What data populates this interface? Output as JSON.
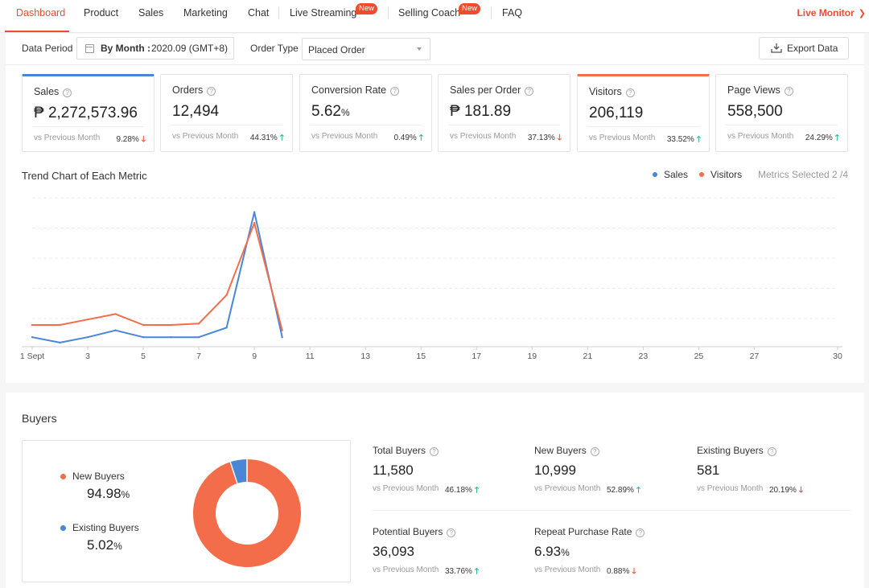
{
  "nav": {
    "tabs": [
      {
        "label": "Dashboard",
        "active": true
      },
      {
        "label": "Product"
      },
      {
        "label": "Sales"
      },
      {
        "label": "Marketing"
      },
      {
        "label": "Chat"
      },
      {
        "label": "Live Streaming",
        "badge": "New"
      },
      {
        "label": "Selling Coach",
        "badge": "New"
      },
      {
        "label": "FAQ"
      }
    ],
    "live_monitor": "Live Monitor",
    "accent": "#ee4d2d"
  },
  "filters": {
    "data_period_label": "Data Period",
    "period_type": "By Month :",
    "period_value": "2020.09 (GMT+8)",
    "order_type_label": "Order Type",
    "order_type_value": "Placed Order",
    "export_label": "Export Data"
  },
  "metrics": [
    {
      "title": "Sales",
      "value": "₱ 2,272,573.96",
      "compare": "vs Previous Month",
      "pct": "9.28%",
      "trend": "down",
      "selected": "blue"
    },
    {
      "title": "Orders",
      "value": "12,494",
      "compare": "vs Previous Month",
      "pct": "44.31%",
      "trend": "up"
    },
    {
      "title": "Conversion Rate",
      "value": "5.62",
      "unit": "%",
      "compare": "vs Previous Month",
      "pct": "0.49%",
      "trend": "up"
    },
    {
      "title": "Sales per Order",
      "value": "₱ 181.89",
      "compare": "vs Previous Month",
      "pct": "37.13%",
      "trend": "down"
    },
    {
      "title": "Visitors",
      "value": "206,119",
      "compare": "vs Previous Month",
      "pct": "33.52%",
      "trend": "up",
      "selected": "orange"
    },
    {
      "title": "Page Views",
      "value": "558,500",
      "compare": "vs Previous Month",
      "pct": "24.29%",
      "trend": "up"
    }
  ],
  "trend": {
    "title": "Trend Chart of Each Metric",
    "metrics_selected": "Metrics Selected 2 /4",
    "legend": [
      {
        "name": "Sales",
        "color": "#4a86d6"
      },
      {
        "name": "Visitors",
        "color": "#f36d4a"
      }
    ]
  },
  "chart_data": {
    "type": "line",
    "x_tick_labels": [
      "1 Sept",
      "3",
      "5",
      "7",
      "9",
      "11",
      "13",
      "15",
      "17",
      "19",
      "21",
      "23",
      "25",
      "27",
      "30"
    ],
    "x_ticks": [
      1,
      3,
      5,
      7,
      9,
      11,
      13,
      15,
      17,
      19,
      21,
      23,
      25,
      27,
      30
    ],
    "xlim": [
      1,
      30
    ],
    "ylim": [
      0,
      100
    ],
    "grid": true,
    "legend_position": "top-right",
    "series": [
      {
        "name": "Sales",
        "color": "#4a86d6",
        "x": [
          1,
          2,
          3,
          4,
          5,
          6,
          7,
          8,
          9,
          10
        ],
        "values": [
          7,
          3,
          7,
          12,
          7,
          7,
          7,
          14,
          99,
          7
        ]
      },
      {
        "name": "Visitors",
        "color": "#f36d4a",
        "x": [
          1,
          2,
          3,
          4,
          5,
          6,
          7,
          8,
          9,
          10
        ],
        "values": [
          16,
          16,
          20,
          24,
          16,
          16,
          17,
          38,
          91,
          12
        ]
      }
    ]
  },
  "buyers": {
    "title": "Buyers",
    "donut": {
      "items": [
        {
          "label": "New Buyers",
          "value": "94.98",
          "unit": "%",
          "share": 94.98,
          "color": "#f36d4a"
        },
        {
          "label": "Existing Buyers",
          "value": "5.02",
          "unit": "%",
          "share": 5.02,
          "color": "#4a86d6"
        }
      ]
    },
    "metrics": [
      {
        "title": "Total Buyers",
        "value": "11,580",
        "compare": "vs Previous Month",
        "pct": "46.18%",
        "trend": "up"
      },
      {
        "title": "New Buyers",
        "value": "10,999",
        "compare": "vs Previous Month",
        "pct": "52.89%",
        "trend": "up"
      },
      {
        "title": "Existing Buyers",
        "value": "581",
        "compare": "vs Previous Month",
        "pct": "20.19%",
        "trend": "down"
      },
      {
        "title": "Potential Buyers",
        "value": "36,093",
        "compare": "vs Previous Month",
        "pct": "33.76%",
        "trend": "up"
      },
      {
        "title": "Repeat Purchase Rate",
        "value": "6.93",
        "unit": "%",
        "compare": "vs Previous Month",
        "pct": "0.88%",
        "trend": "down"
      }
    ]
  }
}
